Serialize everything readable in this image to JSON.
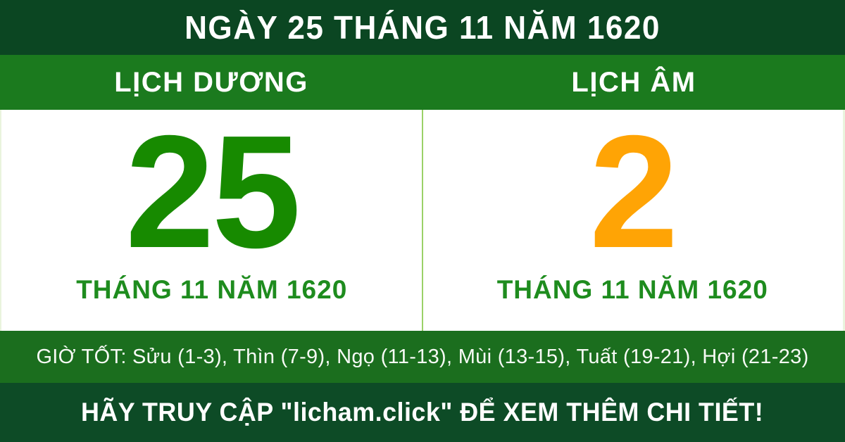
{
  "title_bar": {
    "text": "NGÀY 25 THÁNG 11 NĂM 1620"
  },
  "calendar": {
    "solar": {
      "label": "LỊCH DƯƠNG",
      "day": "25",
      "day_color": "#178A00",
      "month_year": "THÁNG 11 NĂM 1620"
    },
    "lunar": {
      "label": "LỊCH ÂM",
      "day": "2",
      "day_color": "#FFA405",
      "month_year": "THÁNG 11 NĂM 1620"
    }
  },
  "good_hours": {
    "text": "GIỜ TỐT: Sửu (1-3), Thìn (7-9), Ngọ (11-13), Mùi (13-15), Tuất (19-21), Hợi (21-23)"
  },
  "footer": {
    "text": "HÃY TRUY CẬP \"licham.click\" ĐỂ XEM THÊM CHI TIẾT!"
  },
  "colors": {
    "dark_green": "#0B4622",
    "band_green": "#1B7A1E",
    "hours_green": "#1B6E1E",
    "footer_green": "#0D4B26",
    "solar_day_green": "#178A00",
    "month_label_green": "#1E8C1E",
    "lunar_day_orange": "#FFA405",
    "divider_light_green": "#9BD168"
  }
}
